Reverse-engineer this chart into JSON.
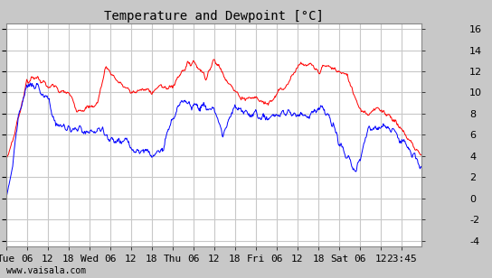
{
  "title": "Temperature and Dewpoint [°C]",
  "ylim": [
    -4.5,
    16.5
  ],
  "x_tick_labels": [
    "Tue",
    "06",
    "12",
    "18",
    "Wed",
    "06",
    "12",
    "18",
    "Thu",
    "06",
    "12",
    "18",
    "Fri",
    "06",
    "12",
    "18",
    "Sat",
    "06",
    "12",
    "23:45"
  ],
  "watermark": "www.vaisala.com",
  "bg_color": "#c8c8c8",
  "plot_bg_color": "#ffffff",
  "grid_color": "#c8c8c8",
  "temp_color": "#ff0000",
  "dew_color": "#0000ff",
  "title_fontsize": 10,
  "tick_fontsize": 8,
  "watermark_fontsize": 7,
  "temp_keypoints_t": [
    0,
    0.1,
    0.25,
    0.38,
    0.5,
    0.6,
    0.65,
    0.75,
    0.85,
    1.0,
    1.1,
    1.2,
    1.35,
    1.5,
    1.6,
    1.75,
    1.85,
    2.0,
    2.1,
    2.25,
    2.4,
    2.5,
    2.6,
    2.75,
    2.85,
    3.0,
    3.1,
    3.15,
    3.25,
    3.35,
    3.5,
    3.65,
    3.75,
    3.85,
    4.0,
    4.1,
    4.25,
    4.35,
    4.5,
    4.65,
    4.99
  ],
  "temp_keypoints_v": [
    3.5,
    6.0,
    11.0,
    11.5,
    10.5,
    10.5,
    10.0,
    10.0,
    8.5,
    8.5,
    9.0,
    12.5,
    11.0,
    10.0,
    10.2,
    10.2,
    10.5,
    10.5,
    12.0,
    13.0,
    11.5,
    13.0,
    12.0,
    10.0,
    9.5,
    9.5,
    9.0,
    9.0,
    10.0,
    10.5,
    12.5,
    12.5,
    12.0,
    12.5,
    12.0,
    11.5,
    8.5,
    8.0,
    8.5,
    7.5,
    4.0
  ],
  "dew_keypoints_t": [
    0,
    0.08,
    0.15,
    0.25,
    0.38,
    0.5,
    0.6,
    0.75,
    0.85,
    1.0,
    1.1,
    1.25,
    1.35,
    1.5,
    1.6,
    1.75,
    1.85,
    2.0,
    2.1,
    2.25,
    2.4,
    2.5,
    2.6,
    2.75,
    2.9,
    3.0,
    3.15,
    3.25,
    3.5,
    3.65,
    3.75,
    3.85,
    4.0,
    4.1,
    4.2,
    4.35,
    4.5,
    4.65,
    4.99
  ],
  "dew_keypoints_v": [
    0.0,
    3.0,
    8.0,
    10.5,
    10.5,
    9.5,
    7.0,
    6.5,
    6.5,
    6.0,
    6.5,
    5.5,
    5.5,
    5.0,
    4.5,
    4.5,
    4.0,
    7.5,
    9.0,
    9.0,
    8.5,
    8.5,
    6.0,
    8.5,
    8.0,
    8.0,
    7.5,
    8.0,
    8.0,
    8.0,
    8.5,
    8.0,
    5.5,
    3.5,
    2.5,
    6.5,
    7.0,
    6.5,
    3.0
  ]
}
